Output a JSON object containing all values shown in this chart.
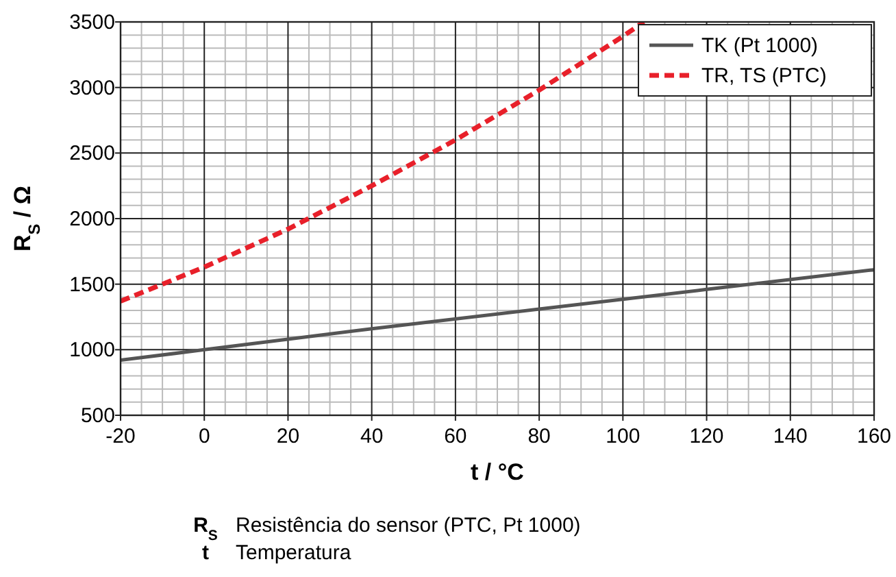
{
  "chart_data": {
    "type": "line",
    "xlabel": "t / °C",
    "ylabel": "R$_{S}$ / Ω",
    "x": [
      -20,
      0,
      20,
      40,
      60,
      80,
      100,
      105
    ],
    "series": [
      {
        "name": "TK (Pt 1000)",
        "color": "#555555",
        "line_style": "solid",
        "x": [
          -20,
          0,
          40,
          80,
          120,
          160
        ],
        "values": [
          920,
          1000,
          1160,
          1310,
          1460,
          1610
        ]
      },
      {
        "name": "TR, TS (PTC)",
        "color": "#e8202a",
        "line_style": "dashed",
        "values": [
          1370,
          1630,
          1920,
          2250,
          2600,
          2980,
          3390,
          3500
        ]
      }
    ],
    "xlim": [
      -20,
      160
    ],
    "xticks": [
      -20,
      0,
      20,
      40,
      60,
      80,
      100,
      120,
      140,
      160
    ],
    "ylim": [
      500,
      3500
    ],
    "yticks": [
      500,
      1000,
      1500,
      2000,
      2500,
      3000,
      3500
    ],
    "grid": true,
    "legend": "top right",
    "marker": "none",
    "annotations": [
      "R$_{S}$\tResistência do sensor (PTC, Pt 1000)",
      "t\tTemperatura"
    ]
  }
}
